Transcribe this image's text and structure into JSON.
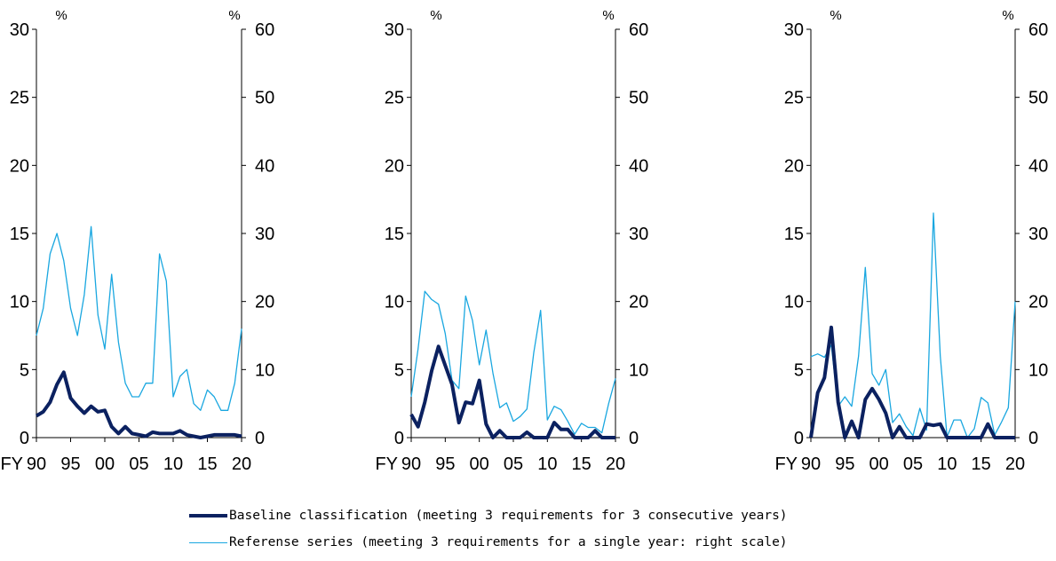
{
  "colors": {
    "baseline": "#0b2160",
    "reference": "#1aa7e0",
    "axis": "#000000"
  },
  "chart_data": [
    {
      "type": "line",
      "x": [
        1990,
        1991,
        1992,
        1993,
        1994,
        1995,
        1996,
        1997,
        1998,
        1999,
        2000,
        2001,
        2002,
        2003,
        2004,
        2005,
        2006,
        2007,
        2008,
        2009,
        2010,
        2011,
        2012,
        2013,
        2014,
        2015,
        2016,
        2017,
        2018,
        2019,
        2020
      ],
      "x_tick_labels": [
        "90",
        "95",
        "00",
        "05",
        "10",
        "15",
        "20"
      ],
      "x_prefix": "FY",
      "left_unit": "%",
      "right_unit": "%",
      "ylim_left": [
        0,
        30
      ],
      "ylim_right": [
        0,
        60
      ],
      "left_ticks": [
        "0",
        "5",
        "10",
        "15",
        "20",
        "25",
        "30"
      ],
      "right_ticks": [
        "0",
        "10",
        "20",
        "30",
        "40",
        "50",
        "60"
      ],
      "series": [
        {
          "name": "Baseline classification (meeting 3 requirements for 3 consecutive years)",
          "axis": "left",
          "values": [
            1.6,
            1.9,
            2.6,
            3.9,
            4.8,
            2.9,
            2.3,
            1.8,
            2.3,
            1.9,
            2.0,
            0.8,
            0.3,
            0.8,
            0.3,
            0.2,
            0.1,
            0.4,
            0.3,
            0.3,
            0.3,
            0.5,
            0.2,
            0.1,
            0.0,
            0.1,
            0.2,
            0.2,
            0.2,
            0.2,
            0.1
          ]
        },
        {
          "name": "Referense series (meeting 3 requirements for a single year: right scale)",
          "axis": "right",
          "values": [
            15,
            19,
            27,
            30,
            26,
            19,
            15,
            21,
            31,
            18,
            13,
            24,
            14,
            8,
            6,
            6,
            8,
            8,
            27,
            23,
            6,
            9,
            10,
            5,
            4,
            7,
            6,
            4,
            4,
            8,
            16
          ]
        }
      ]
    },
    {
      "type": "line",
      "x": [
        1990,
        1991,
        1992,
        1993,
        1994,
        1995,
        1996,
        1997,
        1998,
        1999,
        2000,
        2001,
        2002,
        2003,
        2004,
        2005,
        2006,
        2007,
        2008,
        2009,
        2010,
        2011,
        2012,
        2013,
        2014,
        2015,
        2016,
        2017,
        2018,
        2019,
        2020
      ],
      "x_tick_labels": [
        "90",
        "95",
        "00",
        "05",
        "10",
        "15",
        "20"
      ],
      "x_prefix": "FY",
      "left_unit": "%",
      "right_unit": "%",
      "ylim_left": [
        0,
        30
      ],
      "ylim_right": [
        0,
        60
      ],
      "left_ticks": [
        "0",
        "5",
        "10",
        "15",
        "20",
        "25",
        "30"
      ],
      "right_ticks": [
        "0",
        "10",
        "20",
        "30",
        "40",
        "50",
        "60"
      ],
      "series": [
        {
          "name": "Baseline classification (meeting 3 requirements for 3 consecutive years)",
          "axis": "left",
          "values": [
            1.7,
            0.8,
            2.6,
            4.9,
            6.7,
            5.3,
            3.9,
            1.1,
            2.6,
            2.5,
            4.2,
            1.0,
            0.0,
            0.5,
            0.0,
            0.0,
            0.0,
            0.4,
            0.0,
            0.0,
            0.0,
            1.1,
            0.6,
            0.6,
            0.0,
            0.0,
            0.0,
            0.5,
            0.0,
            0.0,
            0.0
          ]
        },
        {
          "name": "Referense series (meeting 3 requirements for a single year: right scale)",
          "axis": "right",
          "values": [
            6,
            13,
            21.5,
            20.3,
            19.6,
            15.3,
            8.4,
            7.2,
            20.8,
            17.2,
            10.7,
            15.8,
            9.5,
            4.4,
            5.1,
            2.4,
            3.1,
            4.2,
            12.5,
            18.7,
            2.6,
            4.6,
            4.1,
            2.4,
            0.5,
            2.1,
            1.5,
            1.5,
            0.7,
            5.0,
            8.7
          ]
        }
      ]
    },
    {
      "type": "line",
      "x": [
        1990,
        1991,
        1992,
        1993,
        1994,
        1995,
        1996,
        1997,
        1998,
        1999,
        2000,
        2001,
        2002,
        2003,
        2004,
        2005,
        2006,
        2007,
        2008,
        2009,
        2010,
        2011,
        2012,
        2013,
        2014,
        2015,
        2016,
        2017,
        2018,
        2019,
        2020
      ],
      "x_tick_labels": [
        "90",
        "95",
        "00",
        "05",
        "10",
        "15",
        "20"
      ],
      "x_prefix": "FY",
      "left_unit": "%",
      "right_unit": "%",
      "ylim_left": [
        0,
        30
      ],
      "ylim_right": [
        0,
        60
      ],
      "left_ticks": [
        "0",
        "5",
        "10",
        "15",
        "20",
        "25",
        "30"
      ],
      "right_ticks": [
        "0",
        "10",
        "20",
        "30",
        "40",
        "50",
        "60"
      ],
      "series": [
        {
          "name": "Baseline classification (meeting 3 requirements for 3 consecutive years)",
          "axis": "left",
          "values": [
            0.0,
            3.3,
            4.4,
            8.1,
            2.6,
            0.0,
            1.2,
            0.0,
            2.8,
            3.6,
            2.8,
            1.8,
            0.0,
            0.8,
            0.0,
            0.0,
            0.0,
            1.0,
            0.9,
            1.0,
            0.0,
            0.0,
            0.0,
            0.0,
            0.0,
            0.0,
            1.0,
            0.0,
            0.0,
            0.0,
            0.0
          ]
        },
        {
          "name": "Referense series (meeting 3 requirements for a single year: right scale)",
          "axis": "right",
          "values": [
            11.9,
            12.3,
            11.8,
            13.6,
            4.6,
            6.0,
            4.6,
            12.0,
            25.0,
            9.4,
            7.7,
            10.0,
            2.2,
            3.5,
            1.6,
            0.3,
            4.3,
            1.1,
            33.0,
            12.0,
            0.1,
            2.6,
            2.6,
            0.0,
            1.3,
            5.9,
            5.1,
            0.4,
            2.3,
            4.4,
            20.0
          ]
        }
      ]
    }
  ],
  "legend": [
    {
      "label": "Baseline classification (meeting 3 requirements for 3 consecutive years)",
      "series": "baseline"
    },
    {
      "label": "Referense series (meeting 3 requirements for a single year: right scale)",
      "series": "reference"
    }
  ]
}
